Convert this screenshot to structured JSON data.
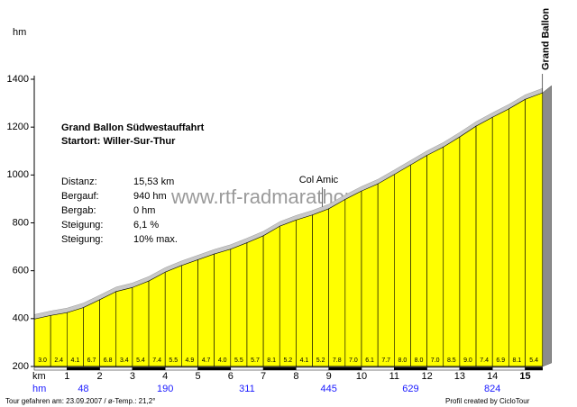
{
  "chart_data": {
    "type": "profile",
    "y_label": "hm",
    "x_label": "km",
    "ylim": [
      200,
      1400
    ],
    "yticks": [
      200,
      400,
      600,
      800,
      1000,
      1200,
      1400
    ],
    "xticks": [
      1,
      2,
      3,
      4,
      5,
      6,
      7,
      8,
      9,
      10,
      11,
      12,
      13,
      14,
      15
    ],
    "x": [
      0,
      0.5,
      1,
      1.5,
      2,
      2.5,
      3,
      3.5,
      4,
      4.5,
      5,
      5.5,
      6,
      6.5,
      7,
      7.5,
      8,
      8.5,
      9,
      9.5,
      10,
      10.5,
      11,
      11.5,
      12,
      12.5,
      13,
      13.5,
      14,
      14.5,
      15,
      15.53
    ],
    "elevation": [
      398,
      413,
      425,
      446,
      479,
      513,
      530,
      557,
      594,
      622,
      646,
      670,
      690,
      717,
      746,
      786,
      812,
      833,
      859,
      898,
      933,
      963,
      1002,
      1042,
      1082,
      1117,
      1159,
      1204,
      1241,
      1276,
      1316,
      1343
    ],
    "color": "#ffff00",
    "gradients": {
      "values": [
        3,
        2.4,
        4.1,
        6.7,
        6.8,
        3.4,
        5.4,
        7.4,
        5.5,
        4.9,
        4.7,
        4,
        5.5,
        5.7,
        8.1,
        5.2,
        4.1,
        5.2,
        7.8,
        7,
        6.1,
        7.7,
        8,
        8,
        7,
        8.5,
        9,
        7.4,
        6.9,
        8.1,
        5.4
      ],
      "value_labels": [
        "3.0",
        "2.4",
        "4.1",
        "6.7",
        "6.8",
        "3.4",
        "5.4",
        "7.4",
        "5.5",
        "4.9",
        "4.7",
        "4.0",
        "5.5",
        "5.7",
        "8.1",
        "5.2",
        "4.1",
        "5.2",
        "7.8",
        "7.0",
        "6.1",
        "7.7",
        "8.0",
        "8.0",
        "7.0",
        "8.5",
        "9.0",
        "7.4",
        "6.9",
        "8.1",
        "5.4"
      ]
    },
    "hm_markers": {
      "label": "hm",
      "km": [
        1.5,
        4,
        6.5,
        9,
        11.5,
        14
      ],
      "values": [
        48,
        190,
        311,
        445,
        629,
        824
      ]
    },
    "annotations": [
      {
        "text": "Col Amic",
        "km": 8.8
      }
    ],
    "summit": "Grand Ballon",
    "title": "Grand Ballon  Südwestauffahrt",
    "subtitle": "Startort: Willer-Sur-Thur",
    "stats": [
      [
        "Distanz:",
        "15,53 km"
      ],
      [
        "Bergauf:",
        "940 hm"
      ],
      [
        "Bergab:",
        "0 hm"
      ],
      [
        "Steigung:",
        "6,1 %"
      ],
      [
        "Steigung:",
        "10%  max."
      ]
    ],
    "watermark": "www.rtf-radmarathon.de",
    "footer_left": "Tour gefahren am: 23.09.2007  /  ø-Temp.: 21,2°",
    "footer_right": "Profil created by CicloTour"
  }
}
